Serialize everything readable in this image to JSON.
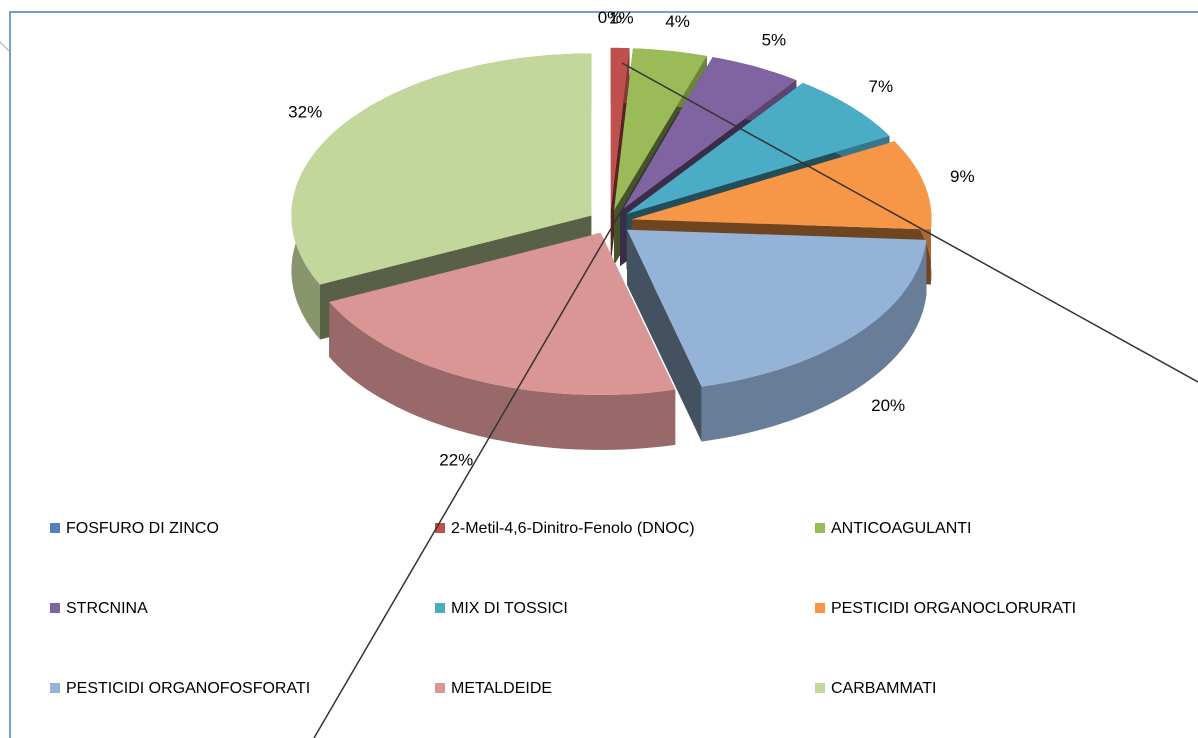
{
  "chart_data": {
    "type": "pie",
    "categories": [
      "FOSFURO DI ZINCO",
      "2-Metil-4,6-Dinitro-Fenolo (DNOC)",
      "ANTICOAGULANTI",
      "STRCNINA",
      "MIX DI TOSSICI",
      "PESTICIDI ORGANOCLORURATI",
      "PESTICIDI ORGANOFOSFORATI",
      "METALDEIDE",
      "CARBAMMATI"
    ],
    "values": [
      0,
      1,
      4,
      5,
      7,
      9,
      20,
      22,
      32
    ],
    "value_labels": [
      "0%",
      "1%",
      "4%",
      "5%",
      "7%",
      "9%",
      "20%",
      "22%",
      "32%"
    ],
    "colors": [
      "#4f81bd",
      "#c0504d",
      "#9bbb59",
      "#8064a2",
      "#4bacc6",
      "#f79646",
      "#95b3d7",
      "#d99694",
      "#c3d69b"
    ],
    "legend": "bottom"
  }
}
